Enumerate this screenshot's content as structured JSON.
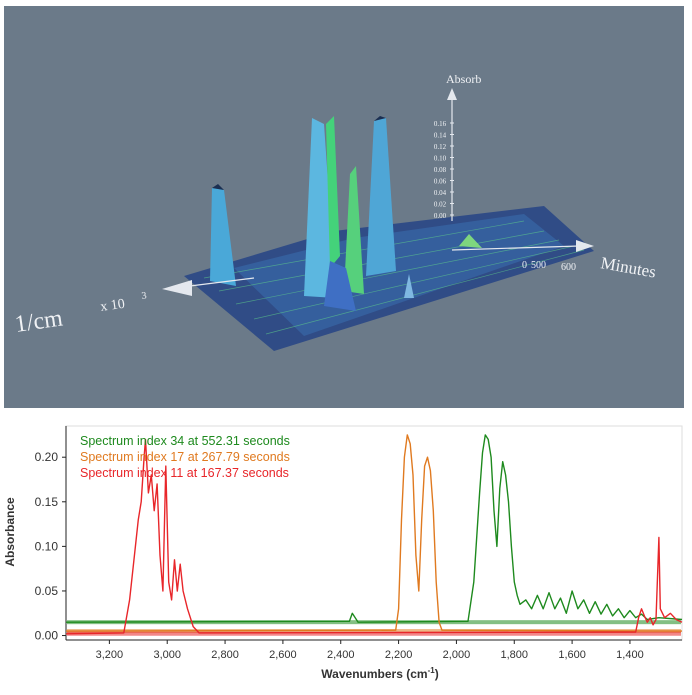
{
  "surface_plot": {
    "z_axis_label": "Absorb",
    "z_ticks": [
      "0.16",
      "0.14",
      "0.12",
      "0.10",
      "0.08",
      "0.06",
      "0.04",
      "0.02",
      "0.00"
    ],
    "time_axis_label": "Minutes",
    "time_ticks": [
      "0",
      "500",
      "600"
    ],
    "wavenumber_axis_label": "1/cm",
    "wavenumber_multiplier": "x 10",
    "wavenumber_exponent": "3"
  },
  "chart_data": {
    "type": "line",
    "xlabel": "Wavenumbers (cm",
    "xlabel_sup": "-1",
    "xlabel_end": ")",
    "ylabel": "Absorbance",
    "xlim": [
      3350,
      1220
    ],
    "ylim": [
      -0.005,
      0.235
    ],
    "x_ticks": [
      3200,
      3000,
      2800,
      2600,
      2400,
      2200,
      2000,
      1800,
      1600,
      1400
    ],
    "x_tick_labels": [
      "3,200",
      "3,000",
      "2,800",
      "2,600",
      "2,400",
      "2,200",
      "2,000",
      "1,800",
      "1,600",
      "1,400"
    ],
    "y_ticks": [
      0.0,
      0.05,
      0.1,
      0.15,
      0.2
    ],
    "y_tick_labels": [
      "0.00",
      "0.05",
      "0.10",
      "0.15",
      "0.20"
    ],
    "legend_position": "top-left",
    "series": [
      {
        "name": "Spectrum index 34 at 552.31 seconds",
        "color": "#1e8a1e",
        "baseline": 0.015,
        "points": [
          [
            3350,
            0.015
          ],
          [
            2370,
            0.016
          ],
          [
            2360,
            0.025
          ],
          [
            2350,
            0.02
          ],
          [
            2340,
            0.015
          ],
          [
            1960,
            0.016
          ],
          [
            1940,
            0.06
          ],
          [
            1920,
            0.16
          ],
          [
            1910,
            0.205
          ],
          [
            1900,
            0.225
          ],
          [
            1890,
            0.22
          ],
          [
            1880,
            0.2
          ],
          [
            1870,
            0.14
          ],
          [
            1860,
            0.1
          ],
          [
            1850,
            0.165
          ],
          [
            1840,
            0.195
          ],
          [
            1830,
            0.18
          ],
          [
            1820,
            0.15
          ],
          [
            1810,
            0.1
          ],
          [
            1800,
            0.06
          ],
          [
            1790,
            0.045
          ],
          [
            1780,
            0.035
          ],
          [
            1760,
            0.04
          ],
          [
            1740,
            0.03
          ],
          [
            1720,
            0.045
          ],
          [
            1700,
            0.03
          ],
          [
            1680,
            0.048
          ],
          [
            1660,
            0.03
          ],
          [
            1640,
            0.042
          ],
          [
            1620,
            0.025
          ],
          [
            1600,
            0.05
          ],
          [
            1580,
            0.03
          ],
          [
            1560,
            0.04
          ],
          [
            1540,
            0.025
          ],
          [
            1520,
            0.038
          ],
          [
            1500,
            0.024
          ],
          [
            1480,
            0.035
          ],
          [
            1460,
            0.022
          ],
          [
            1440,
            0.03
          ],
          [
            1420,
            0.02
          ],
          [
            1400,
            0.028
          ],
          [
            1380,
            0.02
          ],
          [
            1360,
            0.024
          ],
          [
            1340,
            0.018
          ],
          [
            1300,
            0.02
          ],
          [
            1220,
            0.018
          ]
        ]
      },
      {
        "name": "Spectrum index 17 at 267.79 seconds",
        "color": "#e07a20",
        "baseline": 0.005,
        "points": [
          [
            3350,
            0.005
          ],
          [
            2210,
            0.006
          ],
          [
            2200,
            0.03
          ],
          [
            2190,
            0.13
          ],
          [
            2180,
            0.2
          ],
          [
            2170,
            0.225
          ],
          [
            2160,
            0.215
          ],
          [
            2150,
            0.18
          ],
          [
            2140,
            0.09
          ],
          [
            2130,
            0.05
          ],
          [
            2120,
            0.13
          ],
          [
            2110,
            0.19
          ],
          [
            2100,
            0.2
          ],
          [
            2090,
            0.185
          ],
          [
            2080,
            0.14
          ],
          [
            2070,
            0.06
          ],
          [
            2060,
            0.015
          ],
          [
            2050,
            0.006
          ],
          [
            1220,
            0.005
          ]
        ]
      },
      {
        "name": "Spectrum index 11 at 167.37 seconds",
        "color": "#e8262a",
        "baseline": 0.002,
        "points": [
          [
            3350,
            0.002
          ],
          [
            3150,
            0.003
          ],
          [
            3130,
            0.04
          ],
          [
            3110,
            0.1
          ],
          [
            3100,
            0.13
          ],
          [
            3090,
            0.15
          ],
          [
            3080,
            0.2
          ],
          [
            3075,
            0.22
          ],
          [
            3065,
            0.16
          ],
          [
            3055,
            0.18
          ],
          [
            3045,
            0.14
          ],
          [
            3035,
            0.17
          ],
          [
            3025,
            0.09
          ],
          [
            3015,
            0.05
          ],
          [
            3005,
            0.19
          ],
          [
            2995,
            0.06
          ],
          [
            2985,
            0.04
          ],
          [
            2975,
            0.085
          ],
          [
            2965,
            0.05
          ],
          [
            2955,
            0.08
          ],
          [
            2945,
            0.05
          ],
          [
            2930,
            0.03
          ],
          [
            2910,
            0.01
          ],
          [
            2890,
            0.003
          ],
          [
            1380,
            0.004
          ],
          [
            1370,
            0.02
          ],
          [
            1360,
            0.03
          ],
          [
            1350,
            0.022
          ],
          [
            1340,
            0.015
          ],
          [
            1330,
            0.02
          ],
          [
            1320,
            0.012
          ],
          [
            1310,
            0.018
          ],
          [
            1300,
            0.11
          ],
          [
            1295,
            0.03
          ],
          [
            1280,
            0.02
          ],
          [
            1260,
            0.025
          ],
          [
            1240,
            0.018
          ],
          [
            1220,
            0.015
          ]
        ]
      }
    ]
  }
}
